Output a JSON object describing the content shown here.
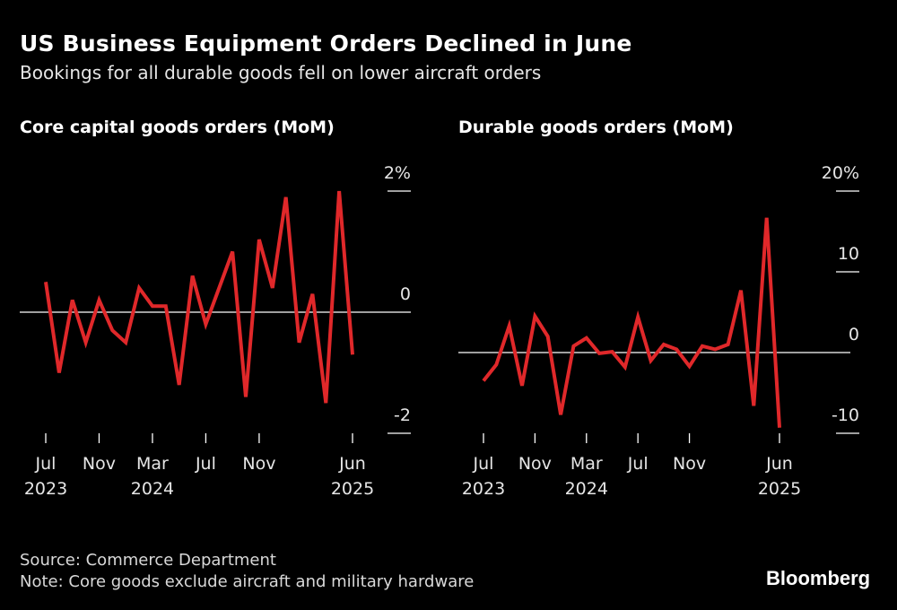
{
  "title": "US Business Equipment Orders Declined in June",
  "subtitle": "Bookings for all durable goods fell on lower aircraft orders",
  "source": "Source: Commerce Department",
  "note": "Note: Core goods exclude aircraft and military hardware",
  "logo": "Bloomberg",
  "colors": {
    "line": "#e0282a",
    "background": "#000000",
    "axis": "#ffffff"
  },
  "chart_data": [
    {
      "type": "line",
      "title": "Core capital goods orders (MoM)",
      "x": [
        "2023-07",
        "2023-08",
        "2023-09",
        "2023-10",
        "2023-11",
        "2023-12",
        "2024-01",
        "2024-02",
        "2024-03",
        "2024-04",
        "2024-05",
        "2024-06",
        "2024-07",
        "2024-08",
        "2024-09",
        "2024-10",
        "2024-11",
        "2024-12",
        "2025-01",
        "2025-02",
        "2025-03",
        "2025-04",
        "2025-05",
        "2025-06"
      ],
      "values": [
        0.5,
        -1.0,
        0.2,
        -0.5,
        0.2,
        -0.3,
        -0.5,
        0.4,
        0.1,
        0.1,
        -1.2,
        0.6,
        -0.2,
        0.4,
        1.0,
        -1.4,
        1.2,
        0.4,
        1.9,
        -0.5,
        0.3,
        -1.5,
        2.0,
        -0.7
      ],
      "ylim": [
        -2.4,
        2.4
      ],
      "yticks": [
        {
          "v": 2,
          "label": "2%"
        },
        {
          "v": 0,
          "label": "0"
        },
        {
          "v": -2,
          "label": "-2"
        }
      ],
      "xticks": [
        {
          "x": "2023-07",
          "label": "Jul",
          "year": "2023"
        },
        {
          "x": "2023-11",
          "label": "Nov",
          "year": ""
        },
        {
          "x": "2024-03",
          "label": "Mar",
          "year": "2024"
        },
        {
          "x": "2024-07",
          "label": "Jul",
          "year": ""
        },
        {
          "x": "2024-11",
          "label": "Nov",
          "year": ""
        },
        {
          "x": "2025-06",
          "label": "Jun",
          "year": "2025"
        }
      ],
      "grid": false
    },
    {
      "type": "line",
      "title": "Durable goods orders (MoM)",
      "x": [
        "2023-07",
        "2023-08",
        "2023-09",
        "2023-10",
        "2023-11",
        "2023-12",
        "2024-01",
        "2024-02",
        "2024-03",
        "2024-04",
        "2024-05",
        "2024-06",
        "2024-07",
        "2024-08",
        "2024-09",
        "2024-10",
        "2024-11",
        "2024-12",
        "2025-01",
        "2025-02",
        "2025-03",
        "2025-04",
        "2025-05",
        "2025-06"
      ],
      "values": [
        -3.5,
        -1.5,
        3.3,
        -4.1,
        4.5,
        2.0,
        -7.7,
        0.8,
        1.8,
        -0.1,
        0.1,
        -1.8,
        4.4,
        -1.0,
        1.0,
        0.4,
        -1.7,
        0.8,
        0.4,
        1.0,
        7.7,
        -6.6,
        16.7,
        -9.3
      ],
      "ylim": [
        -10,
        20
      ],
      "yticks": [
        {
          "v": 20,
          "label": "20%"
        },
        {
          "v": 10,
          "label": "10"
        },
        {
          "v": 0,
          "label": "0"
        },
        {
          "v": -10,
          "label": "-10"
        }
      ],
      "xticks": [
        {
          "x": "2023-07",
          "label": "Jul",
          "year": "2023"
        },
        {
          "x": "2023-11",
          "label": "Nov",
          "year": ""
        },
        {
          "x": "2024-03",
          "label": "Mar",
          "year": "2024"
        },
        {
          "x": "2024-07",
          "label": "Jul",
          "year": ""
        },
        {
          "x": "2024-11",
          "label": "Nov",
          "year": ""
        },
        {
          "x": "2025-06",
          "label": "Jun",
          "year": "2025"
        }
      ],
      "grid": false
    }
  ]
}
